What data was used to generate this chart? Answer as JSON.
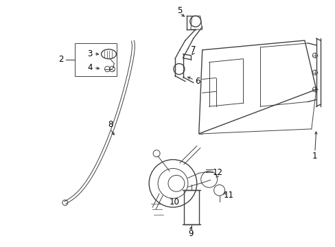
{
  "background_color": "#ffffff",
  "line_color": "#404040",
  "label_color": "#000000",
  "fig_w": 4.89,
  "fig_h": 3.6,
  "dpi": 100
}
